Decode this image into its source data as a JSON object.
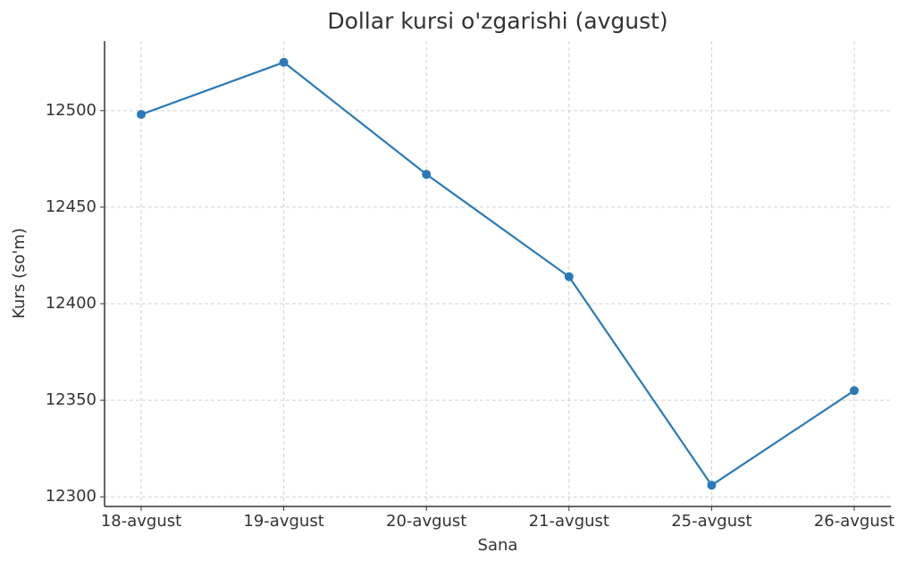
{
  "chart_data": {
    "type": "line",
    "title": "Dollar kursi o'zgarishi (avgust)",
    "x_label": "Sana",
    "y_label": "Kurs (so'm)",
    "categories": [
      "18-avgust",
      "19-avgust",
      "20-avgust",
      "21-avgust",
      "25-avgust",
      "26-avgust"
    ],
    "series": [
      {
        "color": "#2a7ab9",
        "values": [
          12498,
          12525,
          12467,
          12414,
          12306,
          12355
        ]
      }
    ],
    "ylim": [
      12295,
      12536
    ],
    "yticks": [
      12300,
      12350,
      12400,
      12450,
      12500
    ],
    "grid": true
  }
}
